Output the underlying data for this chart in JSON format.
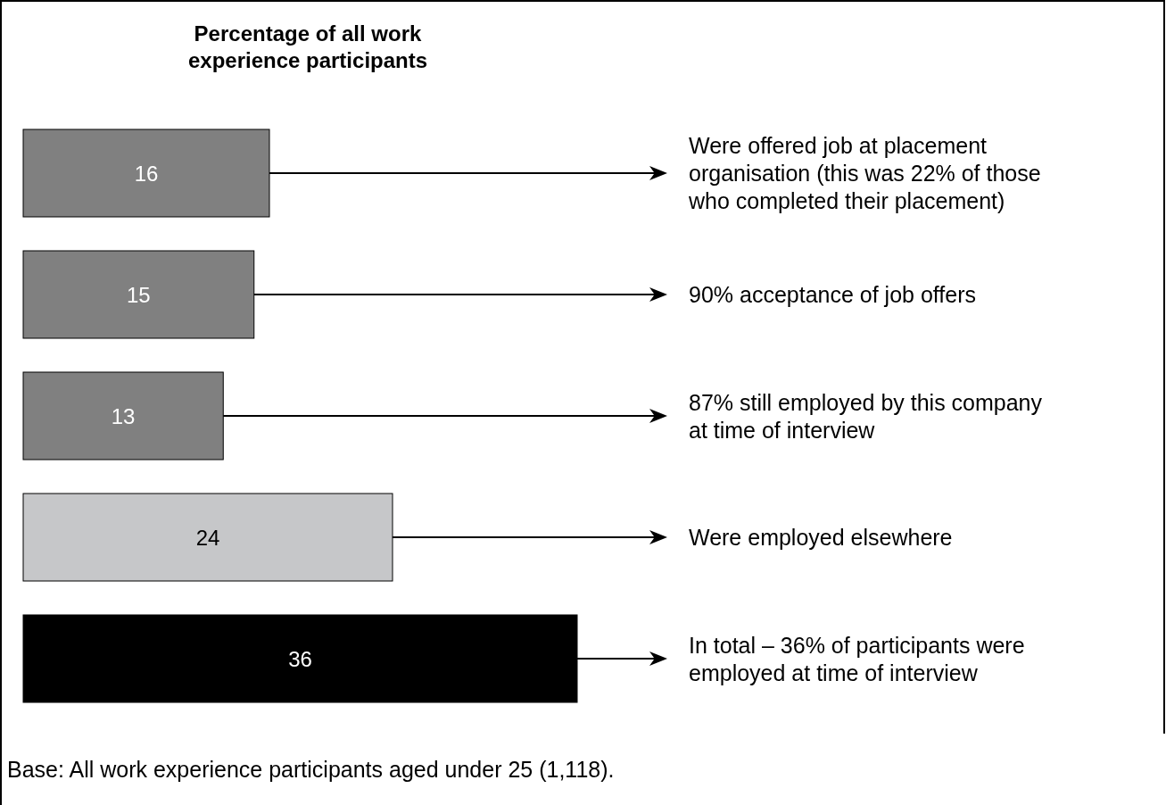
{
  "chart_data": {
    "type": "bar",
    "orientation": "horizontal",
    "title": "Percentage of all work experience participants",
    "categories": [
      "Were offered job at placement organisation (this was 22% of those who completed their placement)",
      "90% acceptance of job offers",
      "87% still employed by this company at time of interview",
      "Were employed elsewhere",
      "In total – 36% of participants were employed at time of interview"
    ],
    "values": [
      16,
      15,
      13,
      24,
      36
    ],
    "colors": [
      "#808080",
      "#808080",
      "#808080",
      "#c6c7c9",
      "#000000"
    ],
    "data_labels": true,
    "annotations": [
      "Base: All work experience participants aged under 25 (1,118)."
    ]
  }
}
